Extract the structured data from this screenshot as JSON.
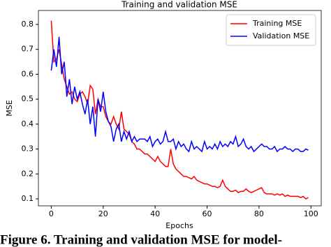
{
  "chart_data": {
    "type": "line",
    "title": "Training and validation MSE",
    "xlabel": "Epochs",
    "ylabel": "MSE",
    "caption": "Figure 6. Training and validation MSE for model-",
    "x": [
      0,
      1,
      2,
      3,
      4,
      5,
      6,
      7,
      8,
      9,
      10,
      11,
      12,
      13,
      14,
      15,
      16,
      17,
      18,
      19,
      20,
      21,
      22,
      23,
      24,
      25,
      26,
      27,
      28,
      29,
      30,
      31,
      32,
      33,
      34,
      35,
      36,
      37,
      38,
      39,
      40,
      41,
      42,
      43,
      44,
      45,
      46,
      47,
      48,
      49,
      50,
      51,
      52,
      53,
      54,
      55,
      56,
      57,
      58,
      59,
      60,
      61,
      62,
      63,
      64,
      65,
      66,
      67,
      68,
      69,
      70,
      71,
      72,
      73,
      74,
      75,
      76,
      77,
      78,
      79,
      80,
      81,
      82,
      83,
      84,
      85,
      86,
      87,
      88,
      89,
      90,
      91,
      92,
      93,
      94,
      95,
      96,
      97,
      98,
      99
    ],
    "series": [
      {
        "name": "Training MSE",
        "color": "#ff0000",
        "values": [
          0.815,
          0.65,
          0.66,
          0.7,
          0.64,
          0.58,
          0.55,
          0.52,
          0.53,
          0.5,
          0.49,
          0.52,
          0.53,
          0.51,
          0.48,
          0.555,
          0.54,
          0.44,
          0.5,
          0.47,
          0.47,
          0.43,
          0.41,
          0.4,
          0.43,
          0.4,
          0.38,
          0.45,
          0.38,
          0.37,
          0.36,
          0.33,
          0.32,
          0.3,
          0.3,
          0.29,
          0.28,
          0.28,
          0.27,
          0.26,
          0.25,
          0.27,
          0.25,
          0.24,
          0.23,
          0.23,
          0.3,
          0.24,
          0.22,
          0.21,
          0.2,
          0.19,
          0.19,
          0.185,
          0.18,
          0.19,
          0.175,
          0.17,
          0.165,
          0.16,
          0.16,
          0.155,
          0.15,
          0.15,
          0.145,
          0.15,
          0.175,
          0.15,
          0.14,
          0.13,
          0.13,
          0.135,
          0.125,
          0.13,
          0.13,
          0.14,
          0.13,
          0.125,
          0.13,
          0.135,
          0.14,
          0.145,
          0.125,
          0.12,
          0.12,
          0.12,
          0.115,
          0.12,
          0.115,
          0.12,
          0.11,
          0.115,
          0.11,
          0.11,
          0.11,
          0.11,
          0.105,
          0.11,
          0.1,
          0.105
        ]
      },
      {
        "name": "Validation MSE",
        "color": "#0000ff",
        "values": [
          0.615,
          0.7,
          0.63,
          0.75,
          0.6,
          0.65,
          0.51,
          0.58,
          0.48,
          0.55,
          0.5,
          0.53,
          0.48,
          0.44,
          0.5,
          0.4,
          0.47,
          0.35,
          0.5,
          0.45,
          0.53,
          0.45,
          0.41,
          0.39,
          0.33,
          0.38,
          0.4,
          0.33,
          0.37,
          0.34,
          0.37,
          0.33,
          0.35,
          0.33,
          0.34,
          0.34,
          0.34,
          0.33,
          0.35,
          0.31,
          0.33,
          0.34,
          0.32,
          0.33,
          0.37,
          0.33,
          0.33,
          0.34,
          0.3,
          0.33,
          0.31,
          0.32,
          0.3,
          0.29,
          0.33,
          0.3,
          0.31,
          0.3,
          0.29,
          0.33,
          0.3,
          0.31,
          0.3,
          0.32,
          0.3,
          0.33,
          0.31,
          0.32,
          0.31,
          0.33,
          0.32,
          0.35,
          0.31,
          0.32,
          0.34,
          0.31,
          0.3,
          0.31,
          0.29,
          0.3,
          0.31,
          0.32,
          0.31,
          0.31,
          0.3,
          0.3,
          0.31,
          0.29,
          0.3,
          0.3,
          0.31,
          0.3,
          0.3,
          0.29,
          0.3,
          0.3,
          0.29,
          0.29,
          0.3,
          0.295
        ]
      }
    ],
    "xlim": [
      -4.95,
      103.95
    ],
    "ylim": [
      0.072,
      0.856
    ],
    "xticks": [
      0,
      20,
      40,
      60,
      80,
      100
    ],
    "yticks": [
      0.1,
      0.2,
      0.3,
      0.4,
      0.5,
      0.6,
      0.7,
      0.8
    ],
    "legend": "upper right",
    "grid": false
  }
}
